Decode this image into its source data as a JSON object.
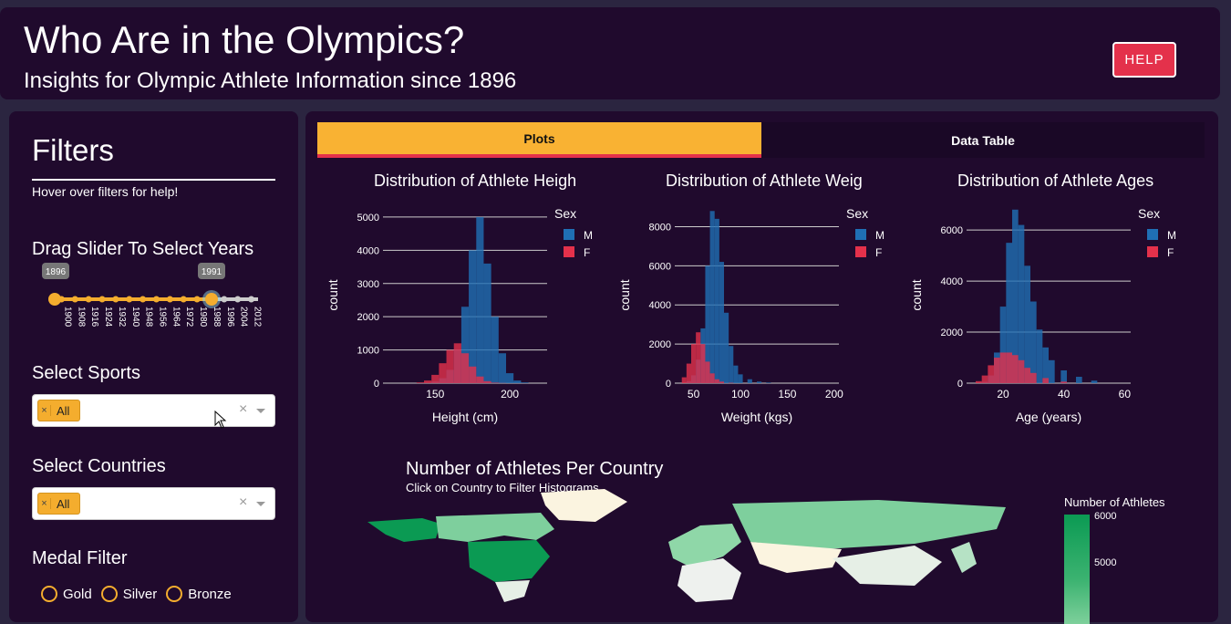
{
  "header": {
    "title": "Who Are in the Olympics?",
    "subtitle": "Insights for Olympic Athlete Information since 1896",
    "help_label": "HELP"
  },
  "filters": {
    "title": "Filters",
    "hint": "Hover over filters for help!",
    "years_label": "Drag Slider To Select Years",
    "year_start": "1896",
    "year_end": "1991",
    "year_ticks": [
      "1900",
      "1908",
      "1916",
      "1924",
      "1932",
      "1940",
      "1948",
      "1956",
      "1964",
      "1972",
      "1980",
      "1988",
      "1996",
      "2004",
      "2012"
    ],
    "sports_label": "Select Sports",
    "sports_value": "All",
    "countries_label": "Select Countries",
    "countries_value": "All",
    "medal_label": "Medal Filter",
    "medals": [
      "Gold",
      "Silver",
      "Bronze"
    ]
  },
  "tabs": {
    "plots": "Plots",
    "table": "Data Table"
  },
  "colors": {
    "male": "#1f6fb4",
    "female": "#e4314b",
    "accent": "#f9b233"
  },
  "chart_data": [
    {
      "type": "bar",
      "title": "Distribution of Athlete Heigh",
      "xlabel": "Height (cm)",
      "ylabel": "count",
      "xticks": [
        "150",
        "200"
      ],
      "yticks": [
        "0",
        "1000",
        "2000",
        "3000",
        "4000",
        "5000"
      ],
      "legend_title": "Sex",
      "series": [
        {
          "name": "M",
          "x": [
            140,
            145,
            150,
            155,
            160,
            165,
            170,
            175,
            180,
            185,
            190,
            195,
            200,
            205,
            210
          ],
          "values": [
            0,
            10,
            50,
            150,
            400,
            1000,
            2300,
            4000,
            5000,
            3600,
            2000,
            900,
            300,
            80,
            20
          ]
        },
        {
          "name": "F",
          "x": [
            140,
            145,
            150,
            155,
            160,
            165,
            170,
            175,
            180,
            185,
            190,
            195,
            200
          ],
          "values": [
            20,
            80,
            250,
            600,
            1000,
            1200,
            900,
            500,
            200,
            60,
            15,
            5,
            0
          ]
        }
      ]
    },
    {
      "type": "bar",
      "title": "Distribution of Athlete Weig",
      "xlabel": "Weight (kgs)",
      "ylabel": "count",
      "xticks": [
        "50",
        "100",
        "150",
        "200"
      ],
      "yticks": [
        "0",
        "2000",
        "4000",
        "6000",
        "8000"
      ],
      "legend_title": "Sex",
      "series": [
        {
          "name": "M",
          "x": [
            45,
            50,
            55,
            60,
            65,
            70,
            75,
            80,
            85,
            90,
            95,
            100,
            110,
            120,
            130
          ],
          "values": [
            100,
            400,
            1200,
            2800,
            6000,
            8800,
            8400,
            6200,
            3600,
            1900,
            900,
            450,
            200,
            80,
            30
          ]
        },
        {
          "name": "F",
          "x": [
            40,
            45,
            50,
            55,
            60,
            65,
            70,
            75,
            80,
            90
          ],
          "values": [
            300,
            1000,
            2000,
            2600,
            2000,
            1100,
            500,
            200,
            80,
            20
          ]
        }
      ]
    },
    {
      "type": "bar",
      "title": "Distribution of Athlete Ages",
      "xlabel": "Age (years)",
      "ylabel": "count",
      "xticks": [
        "20",
        "40",
        "60"
      ],
      "yticks": [
        "0",
        "2000",
        "4000",
        "6000"
      ],
      "legend_title": "Sex",
      "series": [
        {
          "name": "M",
          "x": [
            14,
            16,
            18,
            20,
            22,
            24,
            26,
            28,
            30,
            32,
            34,
            36,
            40,
            45,
            50
          ],
          "values": [
            50,
            300,
            1200,
            3000,
            5500,
            6800,
            6200,
            4600,
            3200,
            2100,
            1400,
            900,
            500,
            250,
            100
          ]
        },
        {
          "name": "F",
          "x": [
            12,
            14,
            16,
            18,
            20,
            22,
            24,
            26,
            28,
            30,
            34,
            40
          ],
          "values": [
            80,
            300,
            700,
            1000,
            1200,
            1200,
            1100,
            900,
            600,
            400,
            200,
            60
          ]
        }
      ]
    },
    {
      "type": "heatmap",
      "title": "Number of Athletes Per Country",
      "subtitle": "Click on Country to Filter Histograms",
      "legend_title": "Number of Athletes",
      "ticks": [
        "6000",
        "5000"
      ]
    }
  ]
}
